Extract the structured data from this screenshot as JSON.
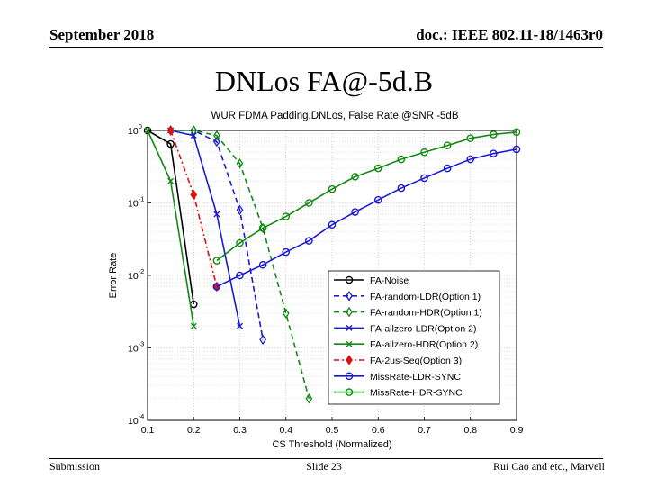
{
  "header": {
    "date": "September 2018",
    "doc": "doc.: IEEE 802.11-18/1463r0"
  },
  "slide_title": "DNLos FA@-5d.B",
  "footer": {
    "left": "Submission",
    "center": "Slide 23",
    "right": "Rui Cao and etc., Marvell"
  },
  "chart_data": {
    "type": "line",
    "title": "WUR FDMA Padding,DNLos, False Rate @SNR -5dB",
    "xlabel": "CS Threshold (Normalized)",
    "ylabel": "Error Rate",
    "xlim": [
      0.1,
      0.9
    ],
    "ylim": [
      0.0001,
      1
    ],
    "yscale": "log",
    "grid": true,
    "legend_position": "inside-right",
    "x_ticks": [
      {
        "v": 0.1,
        "label": "0.1"
      },
      {
        "v": 0.2,
        "label": "0.2"
      },
      {
        "v": 0.3,
        "label": "0.3"
      },
      {
        "v": 0.4,
        "label": "0.4"
      },
      {
        "v": 0.5,
        "label": "0.5"
      },
      {
        "v": 0.6,
        "label": "0.6"
      },
      {
        "v": 0.7,
        "label": "0.7"
      },
      {
        "v": 0.8,
        "label": "0.8"
      },
      {
        "v": 0.9,
        "label": "0.9"
      }
    ],
    "y_ticks": [
      {
        "v": 1,
        "base": "10",
        "exp": "0"
      },
      {
        "v": 0.1,
        "base": "10",
        "exp": "-1"
      },
      {
        "v": 0.01,
        "base": "10",
        "exp": "-2"
      },
      {
        "v": 0.001,
        "base": "10",
        "exp": "-3"
      },
      {
        "v": 0.0001,
        "base": "10",
        "exp": "-4"
      }
    ],
    "series": [
      {
        "name": "FA-Noise",
        "color": "#000000",
        "dash": "",
        "marker": "circle",
        "x": [
          0.1,
          0.15,
          0.2
        ],
        "y": [
          1.0,
          0.65,
          0.004
        ]
      },
      {
        "name": "FA-random-LDR(Option 1)",
        "color": "#1a1ad6",
        "dash": "6,4",
        "marker": "diamond",
        "x": [
          0.15,
          0.2,
          0.25,
          0.3,
          0.35
        ],
        "y": [
          1.0,
          1.0,
          0.7,
          0.08,
          0.0013
        ]
      },
      {
        "name": "FA-random-HDR(Option 1)",
        "color": "#138a13",
        "dash": "6,4",
        "marker": "diamond",
        "x": [
          0.15,
          0.2,
          0.25,
          0.3,
          0.35,
          0.4,
          0.45
        ],
        "y": [
          1.0,
          1.0,
          0.85,
          0.35,
          0.045,
          0.003,
          0.0002
        ]
      },
      {
        "name": "FA-allzero-LDR(Option 2)",
        "color": "#1a1ad6",
        "dash": "",
        "marker": "x",
        "x": [
          0.15,
          0.2,
          0.25,
          0.3
        ],
        "y": [
          1.0,
          0.85,
          0.07,
          0.002
        ]
      },
      {
        "name": "FA-allzero-HDR(Option 2)",
        "color": "#138a13",
        "dash": "",
        "marker": "x",
        "x": [
          0.1,
          0.15,
          0.2
        ],
        "y": [
          1.0,
          0.2,
          0.002
        ]
      },
      {
        "name": "FA-2us-Seq(Option 3)",
        "color": "#e01010",
        "dash": "6,3,2,3",
        "marker": "diamond-filled",
        "x": [
          0.15,
          0.2,
          0.25
        ],
        "y": [
          1.0,
          0.13,
          0.007
        ]
      },
      {
        "name": "MissRate-LDR-SYNC",
        "color": "#1a1ad6",
        "dash": "",
        "marker": "circle",
        "x": [
          0.25,
          0.3,
          0.35,
          0.4,
          0.45,
          0.5,
          0.55,
          0.6,
          0.65,
          0.7,
          0.75,
          0.8,
          0.85,
          0.9
        ],
        "y": [
          0.007,
          0.01,
          0.014,
          0.021,
          0.03,
          0.05,
          0.075,
          0.11,
          0.16,
          0.22,
          0.3,
          0.4,
          0.48,
          0.55
        ]
      },
      {
        "name": "MissRate-HDR-SYNC",
        "color": "#138a13",
        "dash": "",
        "marker": "circle",
        "x": [
          0.25,
          0.3,
          0.35,
          0.4,
          0.45,
          0.5,
          0.55,
          0.6,
          0.65,
          0.7,
          0.75,
          0.8,
          0.85,
          0.9
        ],
        "y": [
          0.016,
          0.028,
          0.045,
          0.065,
          0.1,
          0.155,
          0.23,
          0.3,
          0.4,
          0.5,
          0.62,
          0.78,
          0.88,
          0.95
        ]
      }
    ]
  }
}
